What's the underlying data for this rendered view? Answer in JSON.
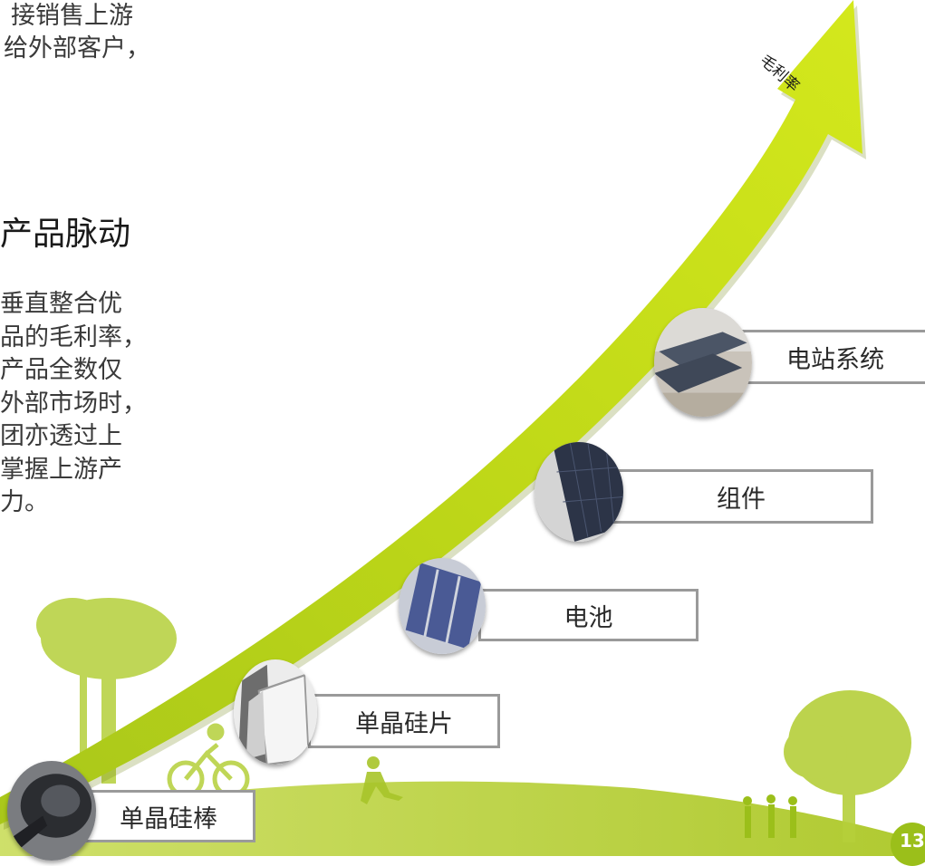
{
  "intro_lines": [
    "接销售上游",
    "给外部客户，"
  ],
  "section_title": "产品脉动",
  "paragraph_lines": [
    "垂直整合优",
    "品的毛利率，",
    "产品全数仅",
    "外部市场时，",
    "团亦透过上",
    "掌握上游产",
    "力。"
  ],
  "arrow_label": "毛利率",
  "stages": [
    {
      "label": "单晶硅棒",
      "icon": "silicon-ingot-icon"
    },
    {
      "label": "单晶硅片",
      "icon": "silicon-wafer-icon"
    },
    {
      "label": "电池",
      "icon": "solar-cell-icon"
    },
    {
      "label": "组件",
      "icon": "solar-module-icon"
    },
    {
      "label": "电站系统",
      "icon": "solar-power-station-icon"
    }
  ],
  "page_number": "13",
  "colors": {
    "accent": "#c6dc0f",
    "accent_dark": "#9bbf1a",
    "label_border": "#9a9a9a"
  }
}
